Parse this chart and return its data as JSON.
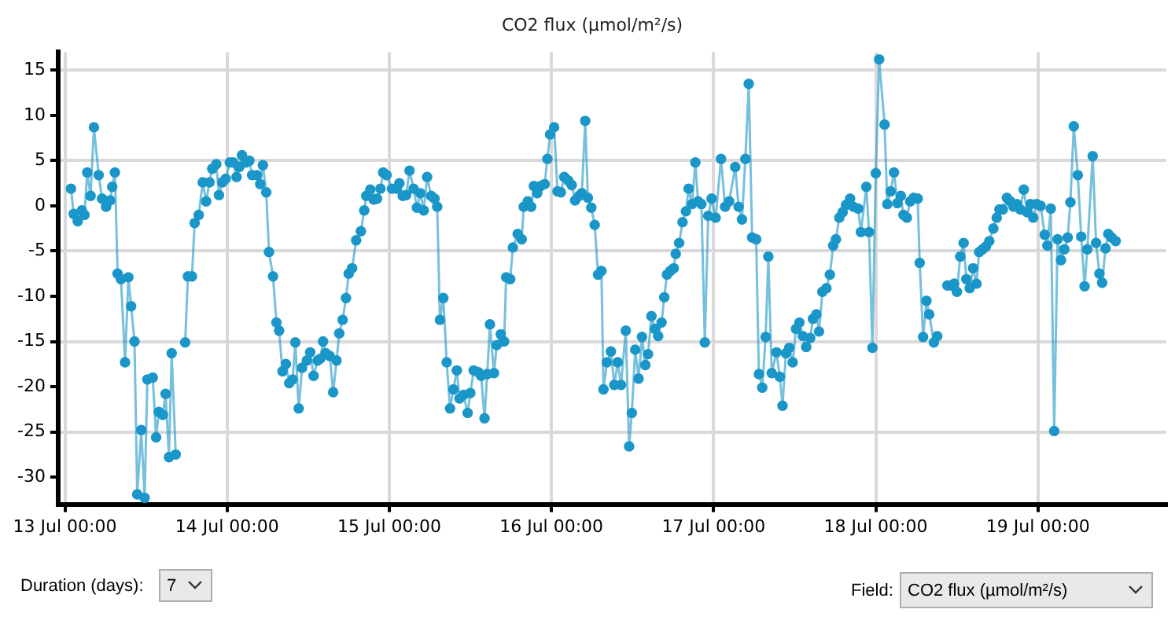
{
  "chart_data": {
    "type": "line",
    "title": "CO2 flux (µmol/m²/s)",
    "x": [
      "--07-13T00:54",
      "--07-13T01:18",
      "--07-13T01:54",
      "--07-13T02:30",
      "--07-13T02:54",
      "--07-13T03:18",
      "--07-13T03:48",
      "--07-13T04:18",
      "--07-13T05:00",
      "--07-13T05:30",
      "--07-13T06:06",
      "--07-13T06:42",
      "--07-13T07:00",
      "--07-13T07:24",
      "--07-13T07:48",
      "--07-13T08:18",
      "--07-13T08:54",
      "--07-13T09:24",
      "--07-13T09:48",
      "--07-13T10:18",
      "--07-13T10:42",
      "--07-13T11:18",
      "--07-13T11:48",
      "--07-13T12:12",
      "--07-13T13:00",
      "--07-13T13:30",
      "--07-13T13:54",
      "--07-13T14:30",
      "--07-13T14:54",
      "--07-13T15:24",
      "--07-13T15:48",
      "--07-13T16:24",
      "--07-13T17:06",
      "--07-13T17:48",
      "--07-13T18:12",
      "--07-13T18:48",
      "--07-13T19:12",
      "--07-13T19:48",
      "--07-13T20:24",
      "--07-13T20:54",
      "--07-13T21:24",
      "--07-13T21:48",
      "--07-13T22:24",
      "--07-13T22:48",
      "--07-13T23:18",
      "--07-13T23:48",
      "--07-14T00:24",
      "--07-14T00:54",
      "--07-14T01:24",
      "--07-14T01:48",
      "--07-14T02:12",
      "--07-14T02:48",
      "--07-14T03:18",
      "--07-14T03:42",
      "--07-14T04:24",
      "--07-14T04:54",
      "--07-14T05:18",
      "--07-14T05:48",
      "--07-14T06:12",
      "--07-14T06:48",
      "--07-14T07:18",
      "--07-14T07:42",
      "--07-14T08:12",
      "--07-14T08:42",
      "--07-14T09:12",
      "--07-14T09:42",
      "--07-14T10:06",
      "--07-14T10:36",
      "--07-14T11:06",
      "--07-14T11:48",
      "--07-14T12:18",
      "--07-14T12:48",
      "--07-14T13:24",
      "--07-14T13:48",
      "--07-14T14:12",
      "--07-14T14:36",
      "--07-14T15:12",
      "--07-14T15:42",
      "--07-14T16:12",
      "--07-14T16:36",
      "--07-14T17:06",
      "--07-14T17:36",
      "--07-14T18:00",
      "--07-14T18:30",
      "--07-14T19:06",
      "--07-14T19:48",
      "--07-14T20:18",
      "--07-14T20:36",
      "--07-14T21:12",
      "--07-14T21:42",
      "--07-14T22:12",
      "--07-14T22:42",
      "--07-14T23:06",
      "--07-14T23:36",
      "--07-15T00:24",
      "--07-15T01:06",
      "--07-15T01:30",
      "--07-15T02:00",
      "--07-15T02:30",
      "--07-15T03:00",
      "--07-15T03:36",
      "--07-15T04:06",
      "--07-15T04:36",
      "--07-15T05:06",
      "--07-15T05:36",
      "--07-15T06:12",
      "--07-15T06:42",
      "--07-15T07:06",
      "--07-15T07:30",
      "--07-15T08:00",
      "--07-15T08:30",
      "--07-15T09:00",
      "--07-15T09:30",
      "--07-15T10:00",
      "--07-15T10:24",
      "--07-15T11:00",
      "--07-15T11:36",
      "--07-15T12:00",
      "--07-15T12:30",
      "--07-15T13:12",
      "--07-15T13:36",
      "--07-15T14:06",
      "--07-15T14:30",
      "--07-15T14:54",
      "--07-15T15:30",
      "--07-15T15:54",
      "--07-15T16:30",
      "--07-15T17:00",
      "--07-15T17:18",
      "--07-15T17:54",
      "--07-15T18:18",
      "--07-15T19:00",
      "--07-15T19:36",
      "--07-15T19:54",
      "--07-15T20:30",
      "--07-15T21:00",
      "--07-15T21:24",
      "--07-15T21:54",
      "--07-15T22:24",
      "--07-15T23:00",
      "--07-15T23:24",
      "--07-15T23:48",
      "--07-16T00:24",
      "--07-16T00:54",
      "--07-16T01:24",
      "--07-16T01:54",
      "--07-16T02:30",
      "--07-16T03:00",
      "--07-16T03:30",
      "--07-16T04:06",
      "--07-16T04:30",
      "--07-16T05:00",
      "--07-16T05:24",
      "--07-16T05:54",
      "--07-16T06:24",
      "--07-16T06:54",
      "--07-16T07:24",
      "--07-16T07:42",
      "--07-16T08:12",
      "--07-16T08:48",
      "--07-16T09:18",
      "--07-16T09:48",
      "--07-16T10:18",
      "--07-16T11:00",
      "--07-16T11:30",
      "--07-16T11:54",
      "--07-16T12:24",
      "--07-16T12:54",
      "--07-16T13:24",
      "--07-16T13:54",
      "--07-16T14:18",
      "--07-16T14:48",
      "--07-16T15:18",
      "--07-16T15:48",
      "--07-16T16:18",
      "--07-16T16:42",
      "--07-16T17:06",
      "--07-16T17:36",
      "--07-16T18:06",
      "--07-16T18:24",
      "--07-16T18:54",
      "--07-16T19:24",
      "--07-16T19:54",
      "--07-16T20:18",
      "--07-16T20:48",
      "--07-16T21:18",
      "--07-16T21:42",
      "--07-16T22:12",
      "--07-16T22:42",
      "--07-16T23:12",
      "--07-16T23:42",
      "--07-17T00:18",
      "--07-17T01:06",
      "--07-17T01:42",
      "--07-17T02:18",
      "--07-17T03:12",
      "--07-17T03:42",
      "--07-17T04:12",
      "--07-17T04:42",
      "--07-17T05:12",
      "--07-17T05:42",
      "--07-17T06:18",
      "--07-17T06:42",
      "--07-17T07:12",
      "--07-17T07:42",
      "--07-17T08:06",
      "--07-17T08:36",
      "--07-17T09:18",
      "--07-17T09:48",
      "--07-17T10:12",
      "--07-17T10:42",
      "--07-17T11:12",
      "--07-17T11:42",
      "--07-17T12:12",
      "--07-17T12:42",
      "--07-17T13:12",
      "--07-17T13:42",
      "--07-17T14:18",
      "--07-17T14:42",
      "--07-17T15:12",
      "--07-17T15:36",
      "--07-17T16:06",
      "--07-17T16:42",
      "--07-17T17:12",
      "--07-17T17:42",
      "--07-17T18:06",
      "--07-17T18:36",
      "--07-17T19:06",
      "--07-17T19:36",
      "--07-17T20:12",
      "--07-17T20:42",
      "--07-17T21:24",
      "--07-17T21:48",
      "--07-17T22:36",
      "--07-17T23:00",
      "--07-17T23:30",
      "--07-18T00:00",
      "--07-18T00:30",
      "--07-18T01:18",
      "--07-18T01:42",
      "--07-18T02:12",
      "--07-18T02:42",
      "--07-18T03:12",
      "--07-18T03:42",
      "--07-18T04:06",
      "--07-18T04:36",
      "--07-18T05:06",
      "--07-18T05:36",
      "--07-18T06:12",
      "--07-18T06:30",
      "--07-18T07:00",
      "--07-18T07:30",
      "--07-18T07:54",
      "--07-18T08:36",
      "--07-18T09:06",
      "--07-18T09:48",
      "--07-18T10:36",
      "--07-18T11:12",
      "--07-18T11:36",
      "--07-18T12:00",
      "--07-18T12:30",
      "--07-18T13:00",
      "--07-18T13:24",
      "--07-18T13:54",
      "--07-18T14:24",
      "--07-18T14:54",
      "--07-18T15:18",
      "--07-18T15:48",
      "--07-18T16:18",
      "--07-18T16:48",
      "--07-18T17:24",
      "--07-18T17:54",
      "--07-18T18:18",
      "--07-18T18:48",
      "--07-18T19:24",
      "--07-18T19:54",
      "--07-18T20:24",
      "--07-18T20:54",
      "--07-18T21:24",
      "--07-18T21:54",
      "--07-18T22:24",
      "--07-18T22:54",
      "--07-18T23:18",
      "--07-18T23:48",
      "--07-19T00:24",
      "--07-19T01:00",
      "--07-19T01:24",
      "--07-19T01:54",
      "--07-19T02:24",
      "--07-19T02:54",
      "--07-19T03:24",
      "--07-19T03:54",
      "--07-19T04:24",
      "--07-19T04:48",
      "--07-19T05:18",
      "--07-19T05:54",
      "--07-19T06:24",
      "--07-19T06:54",
      "--07-19T07:18",
      "--07-19T08:06",
      "--07-19T08:36",
      "--07-19T09:06",
      "--07-19T09:30",
      "--07-19T10:00",
      "--07-19T10:24",
      "--07-19T10:54",
      "--07-19T11:30"
    ],
    "series": [
      {
        "color": "#1a96c8",
        "values": [
          1.9,
          -0.9,
          -1.7,
          -0.5,
          -1.0,
          3.7,
          1.1,
          8.7,
          3.4,
          0.8,
          -0.1,
          0.6,
          2.1,
          3.7,
          -7.5,
          -8.1,
          -17.3,
          -7.9,
          -11.1,
          -15.0,
          -31.9,
          -24.8,
          -32.3,
          -19.2,
          -19.0,
          -25.6,
          -22.8,
          -23.1,
          -20.8,
          -27.8,
          -16.3,
          -27.5,
          null,
          -15.1,
          -7.8,
          -7.8,
          -1.9,
          -1.0,
          2.6,
          0.5,
          2.6,
          4.1,
          4.6,
          1.2,
          2.6,
          3.0,
          4.8,
          4.8,
          3.2,
          4.3,
          5.6,
          4.8,
          5.0,
          3.4,
          3.4,
          2.4,
          4.5,
          1.5,
          -5.1,
          -7.8,
          -12.9,
          -13.8,
          -18.3,
          -17.5,
          -19.6,
          -19.2,
          -15.1,
          -22.4,
          -17.9,
          -17.1,
          -16.2,
          -18.8,
          -17.1,
          -16.9,
          -15.0,
          -16.3,
          -16.6,
          -20.6,
          -17.1,
          -14.1,
          -12.6,
          -10.2,
          -7.5,
          -6.9,
          -3.8,
          -2.8,
          -0.5,
          1.1,
          1.8,
          0.7,
          0.8,
          1.9,
          3.7,
          3.4,
          1.9,
          1.9,
          2.5,
          1.1,
          1.2,
          3.9,
          1.9,
          -0.2,
          1.4,
          -0.5,
          3.2,
          1.1,
          0.8,
          -0.1,
          -12.6,
          -10.2,
          -17.3,
          -22.4,
          -20.3,
          -18.2,
          -21.3,
          -20.9,
          -22.9,
          -20.7,
          -18.2,
          -18.4,
          -18.8,
          -23.5,
          -18.6,
          -13.1,
          -18.5,
          -15.4,
          -14.2,
          -15.0,
          -7.9,
          -8.1,
          -4.6,
          -3.1,
          -3.7,
          -0.1,
          0.5,
          -0.1,
          2.2,
          1.4,
          2.2,
          2.4,
          5.2,
          7.9,
          8.7,
          1.6,
          1.5,
          3.2,
          2.8,
          2.3,
          0.6,
          1.1,
          1.4,
          9.4,
          0.9,
          -0.2,
          -2.1,
          -7.6,
          -7.2,
          -20.3,
          -17.3,
          -16.1,
          -19.8,
          -17.3,
          -19.8,
          -13.8,
          -26.6,
          -22.9,
          -15.9,
          -19.1,
          -14.5,
          -17.6,
          -16.4,
          -12.2,
          -13.6,
          -14.4,
          -12.9,
          -10.1,
          -7.6,
          -7.2,
          -6.9,
          -5.3,
          -4.1,
          -1.8,
          -0.6,
          1.9,
          0.2,
          4.8,
          0.5,
          0.2,
          -15.1,
          -1.1,
          0.8,
          -1.3,
          5.2,
          -0.1,
          0.5,
          4.3,
          -0.1,
          -1.5,
          5.2,
          13.5,
          -3.5,
          -3.7,
          -18.6,
          -20.1,
          -14.5,
          -5.6,
          -18.5,
          -16.2,
          -18.9,
          -22.1,
          -16.3,
          -15.7,
          -17.3,
          -13.6,
          -12.9,
          -14.4,
          -15.6,
          -14.6,
          -12.5,
          -12.0,
          -13.9,
          -9.5,
          -9.1,
          -7.6,
          -4.4,
          -3.7,
          -1.3,
          -0.7,
          0.1,
          0.8,
          -0.1,
          -0.3,
          -2.9,
          2.1,
          -2.9,
          -15.7,
          3.6,
          16.2,
          9.0,
          0.2,
          1.6,
          3.7,
          0.3,
          1.1,
          -1.0,
          -1.3,
          0.5,
          0.9,
          0.8,
          -6.3,
          -14.5,
          -10.5,
          -12.0,
          -15.1,
          -14.4,
          null,
          -8.8,
          -8.8,
          -8.6,
          -9.5,
          -5.6,
          -4.1,
          -8.1,
          -9.1,
          -6.9,
          -8.6,
          -5.1,
          -4.8,
          -4.5,
          -3.9,
          -2.5,
          -1.3,
          -0.4,
          -0.4,
          0.9,
          0.5,
          -0.1,
          0.2,
          -0.4,
          1.8,
          -0.7,
          0.2,
          -1.3,
          0.2,
          0.0,
          -3.2,
          -4.4,
          -0.3,
          -24.9,
          -3.7,
          -6.0,
          -4.8,
          -3.5,
          0.4,
          8.8,
          3.4,
          -3.4,
          -8.9,
          -4.8,
          5.5,
          -4.1,
          -7.5,
          -8.5,
          -4.7,
          -3.1,
          -3.5,
          -3.9
        ]
      }
    ],
    "xlim": [
      "--07-12T23:00",
      "--07-19T19:00"
    ],
    "xticks": [
      {
        "value": "--07-13T00:00",
        "label": "13 Jul 00:00"
      },
      {
        "value": "--07-14T00:00",
        "label": "14 Jul 00:00"
      },
      {
        "value": "--07-15T00:00",
        "label": "15 Jul 00:00"
      },
      {
        "value": "--07-16T00:00",
        "label": "16 Jul 00:00"
      },
      {
        "value": "--07-17T00:00",
        "label": "17 Jul 00:00"
      },
      {
        "value": "--07-18T00:00",
        "label": "18 Jul 00:00"
      },
      {
        "value": "--07-19T00:00",
        "label": "19 Jul 00:00"
      }
    ],
    "ylim": [
      -33,
      17
    ],
    "yticks": [
      15,
      10,
      5,
      0,
      -5,
      -10,
      -15,
      -20,
      -25,
      -30
    ],
    "grid": true,
    "marker": "circle",
    "line_style": "solid",
    "annotations": [
      "Duration (days):",
      "7",
      "Field:",
      "CO2 flux (µmol/m²/s)"
    ]
  }
}
